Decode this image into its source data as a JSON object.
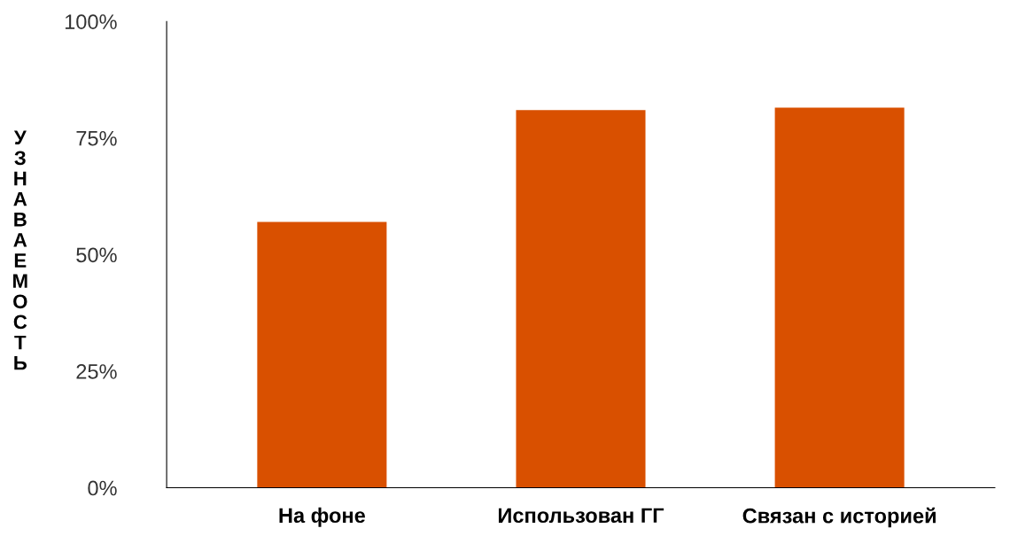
{
  "chart_data": {
    "type": "bar",
    "ylabel": "УЗНАВАЕМОСТЬ",
    "categories": [
      "На фоне",
      "Использован ГГ",
      "Связан с историей"
    ],
    "values": [
      57,
      81,
      81.5
    ],
    "color": "#d95000",
    "ylim": [
      0,
      100
    ],
    "yticks": [
      {
        "value": 0,
        "label": "0%"
      },
      {
        "value": 25,
        "label": "25%"
      },
      {
        "value": 50,
        "label": "50%"
      },
      {
        "value": 75,
        "label": "75%"
      },
      {
        "value": 100,
        "label": "100%"
      }
    ],
    "grid": false,
    "legend": false
  }
}
